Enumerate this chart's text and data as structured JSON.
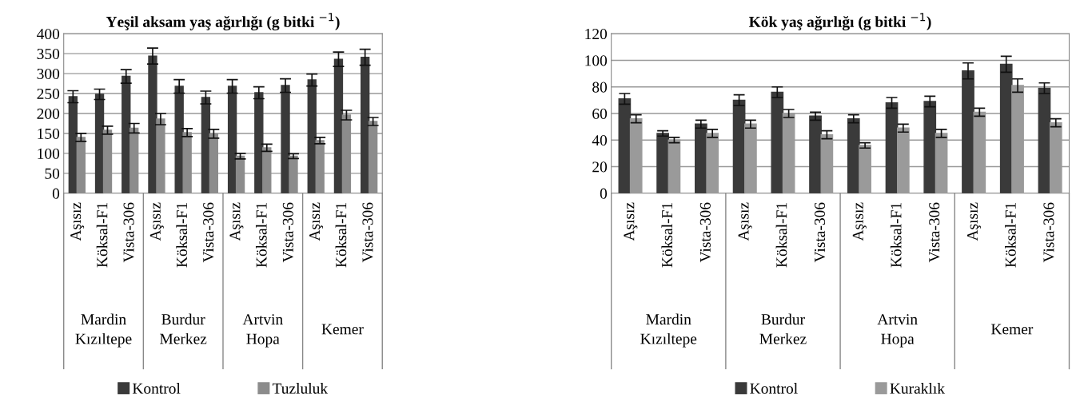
{
  "chart_data": [
    {
      "type": "bar",
      "title": "Yeşil aksam yaş ağırlığı (g bitki $^{−1}$)",
      "categories": [
        "Aşısız",
        "Köksal-F1",
        "Vista-306",
        "Aşısız",
        "Köksal-F1",
        "Vista-306",
        "Aşısız",
        "Köksal-F1",
        "Vista-306",
        "Aşısız",
        "Köksal-F1",
        "Vista-306"
      ],
      "annotations": [
        "Mardin\nKızıltepe",
        "Burdur\nMerkez",
        "Artvin\nHopa",
        "Kemer"
      ],
      "series": [
        {
          "name": "Kontrol",
          "color": "#3a3a3a",
          "values": [
            242,
            248,
            293,
            344,
            268,
            240,
            268,
            252,
            270,
            284,
            336,
            341
          ],
          "errors": [
            15,
            13,
            17,
            20,
            17,
            16,
            17,
            15,
            17,
            15,
            18,
            20
          ]
        },
        {
          "name": "Tuzluluk",
          "color": "#8c8c8c",
          "values": [
            140,
            158,
            163,
            186,
            152,
            149,
            93,
            114,
            93,
            132,
            196,
            180
          ],
          "errors": [
            10,
            10,
            12,
            14,
            10,
            11,
            7,
            9,
            6,
            8,
            12,
            10
          ]
        }
      ],
      "ylim": [
        0,
        400
      ],
      "yticks": [
        0,
        50,
        100,
        150,
        200,
        250,
        300,
        350,
        400
      ],
      "grid": "y",
      "legend": "bottom"
    },
    {
      "type": "bar",
      "title": "Kök yaş ağırlığı (g bitki $^{−1}$)",
      "categories": [
        "Aşısız",
        "Köksal-F1",
        "Vista-306",
        "Aşısız",
        "Köksal-F1",
        "Vista-306",
        "Aşısız",
        "Köksal-F1",
        "Vista-306",
        "Aşısız",
        "Köksal-F1",
        "Vista-306"
      ],
      "annotations": [
        "Mardin\nKızıltepe",
        "Burdur\nMerkez",
        "Artvin\nHopa",
        "Kemer"
      ],
      "series": [
        {
          "name": "Kontrol",
          "color": "#3a3a3a",
          "values": [
            71,
            45,
            52,
            70,
            76,
            58,
            56,
            68,
            69,
            92,
            97,
            79
          ],
          "errors": [
            4,
            2,
            3,
            4,
            4,
            3,
            3,
            4,
            4,
            6,
            6,
            4
          ]
        },
        {
          "name": "Kuraklık",
          "color": "#9a9a9a",
          "values": [
            56,
            40,
            45,
            52,
            60,
            44,
            36,
            49,
            45,
            61,
            81,
            53
          ],
          "errors": [
            3,
            2,
            3,
            3,
            3,
            3,
            2,
            3,
            3,
            3,
            5,
            3
          ]
        }
      ],
      "ylim": [
        0,
        120
      ],
      "yticks": [
        0,
        20,
        40,
        60,
        80,
        100,
        120
      ],
      "grid": "y",
      "legend": "bottom"
    }
  ]
}
